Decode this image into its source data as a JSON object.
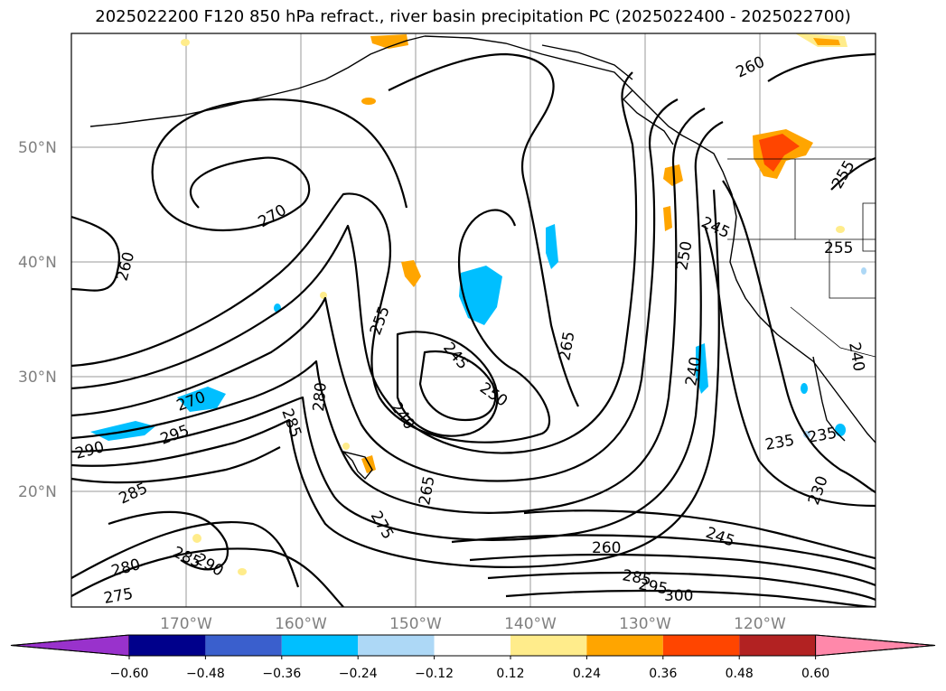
{
  "title": "2025022200 F120 850 hPa refract., river basin precipitation PC (2025022400 - 2025022700)",
  "map": {
    "lat_labels": [
      "50°N",
      "40°N",
      "30°N",
      "20°N"
    ],
    "lon_labels": [
      "170°W",
      "160°W",
      "150°W",
      "140°W",
      "130°W",
      "120°W"
    ],
    "contour_labels": [
      "270",
      "260",
      "255",
      "245",
      "250",
      "265",
      "240",
      "280",
      "285",
      "290",
      "295",
      "270",
      "285",
      "275",
      "265",
      "240",
      "260",
      "245",
      "235",
      "230",
      "235",
      "260",
      "255",
      "255",
      "250",
      "245",
      "240",
      "280",
      "275",
      "285",
      "290",
      "285",
      "295",
      "300"
    ]
  },
  "colorbar": {
    "colors": [
      "#9932cc",
      "#00008b",
      "#3a5fcd",
      "#00bfff",
      "#add8f6",
      "#ffffff",
      "#ffec8b",
      "#ffa500",
      "#ff4500",
      "#b22222",
      "#ff88aa"
    ],
    "ticks": [
      "−0.60",
      "−0.48",
      "−0.36",
      "−0.24",
      "−0.12",
      "0.12",
      "0.24",
      "0.36",
      "0.48",
      "0.60"
    ]
  }
}
